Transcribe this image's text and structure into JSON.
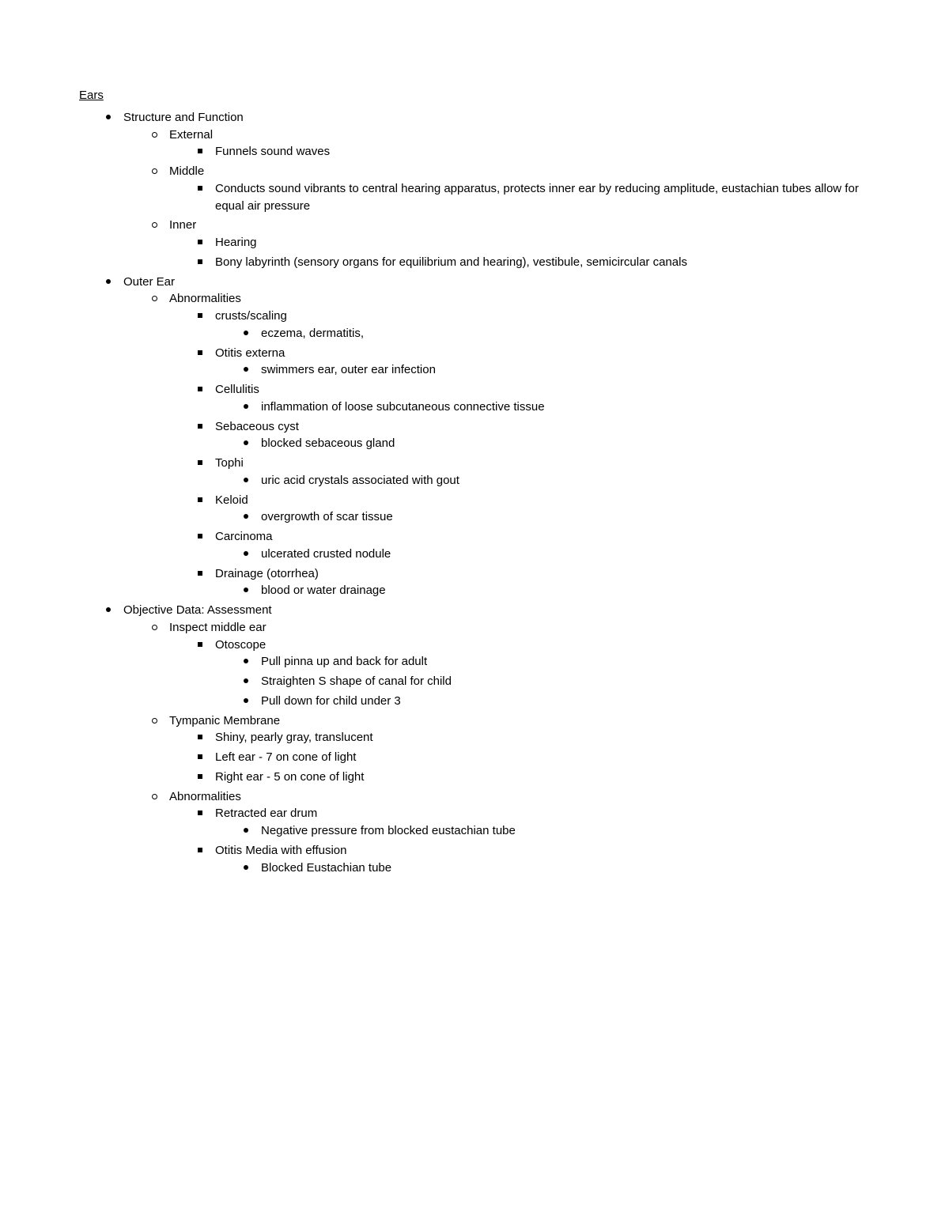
{
  "title": "Ears",
  "colors": {
    "text": "#000000",
    "background": "#ffffff"
  },
  "typography": {
    "font_family": "Arial",
    "font_size_pt": 11,
    "title_decoration": "underline"
  },
  "outline": [
    {
      "text": "Structure and Function",
      "children": [
        {
          "text": "External",
          "children": [
            {
              "text": "Funnels sound waves"
            }
          ]
        },
        {
          "text": "Middle",
          "children": [
            {
              "text": "Conducts sound vibrants to central hearing apparatus, protects inner ear by reducing amplitude, eustachian tubes allow for equal air pressure"
            }
          ]
        },
        {
          "text": "Inner",
          "children": [
            {
              "text": "Hearing"
            },
            {
              "text": "Bony labyrinth (sensory organs for equilibrium and hearing), vestibule, semicircular canals"
            }
          ]
        }
      ]
    },
    {
      "text": "Outer Ear",
      "children": [
        {
          "text": "Abnormalities",
          "children": [
            {
              "text": "crusts/scaling",
              "children": [
                {
                  "text": "eczema, dermatitis,"
                }
              ]
            },
            {
              "text": "Otitis externa",
              "children": [
                {
                  "text": "swimmers ear, outer ear infection"
                }
              ]
            },
            {
              "text": "Cellulitis",
              "children": [
                {
                  "text": "inflammation of loose subcutaneous connective tissue"
                }
              ]
            },
            {
              "text": "Sebaceous cyst",
              "children": [
                {
                  "text": "blocked sebaceous gland"
                }
              ]
            },
            {
              "text": "Tophi",
              "children": [
                {
                  "text": "uric acid crystals associated with gout"
                }
              ]
            },
            {
              "text": "Keloid",
              "children": [
                {
                  "text": "overgrowth of scar tissue"
                }
              ]
            },
            {
              "text": "Carcinoma",
              "children": [
                {
                  "text": "ulcerated crusted nodule"
                }
              ]
            },
            {
              "text": "Drainage (otorrhea)",
              "children": [
                {
                  "text": "blood or water drainage"
                }
              ]
            }
          ]
        }
      ]
    },
    {
      "text": "Objective Data: Assessment",
      "children": [
        {
          "text": "Inspect middle ear",
          "children": [
            {
              "text": "Otoscope",
              "children": [
                {
                  "text": "Pull pinna up and back for adult"
                },
                {
                  "text": "Straighten S shape of canal for child"
                },
                {
                  "text": "Pull down for child under 3"
                }
              ]
            }
          ]
        },
        {
          "text": "Tympanic Membrane",
          "children": [
            {
              "text": "Shiny, pearly gray, translucent"
            },
            {
              "text": "Left ear - 7 on cone of light"
            },
            {
              "text": "Right ear - 5 on cone of light"
            }
          ]
        },
        {
          "text": "Abnormalities",
          "children": [
            {
              "text": "Retracted ear drum",
              "children": [
                {
                  "text": "Negative pressure from blocked eustachian tube"
                }
              ]
            },
            {
              "text": "Otitis Media with effusion",
              "children": [
                {
                  "text": "Blocked Eustachian tube"
                }
              ]
            }
          ]
        }
      ]
    }
  ]
}
